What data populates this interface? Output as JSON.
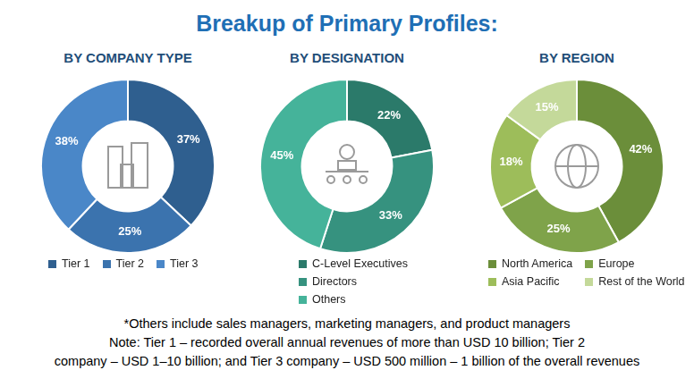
{
  "title": "Breakup of Primary Profiles:",
  "chart_data": [
    {
      "type": "doughnut",
      "title": "BY COMPANY TYPE",
      "categories": [
        "Tier 1",
        "Tier 2",
        "Tier 3"
      ],
      "values": [
        37,
        25,
        38
      ],
      "value_labels": [
        "37%",
        "25%",
        "38%"
      ],
      "colors": [
        "#2f5f8f",
        "#3b73ae",
        "#4a87c8"
      ],
      "data_labels": true,
      "legend": "bottom"
    },
    {
      "type": "doughnut",
      "title": "BY DESIGNATION",
      "categories": [
        "C-Level Executives",
        "Directors",
        "Others"
      ],
      "values": [
        22,
        33,
        45
      ],
      "value_labels": [
        "22%",
        "33%",
        "45%"
      ],
      "colors": [
        "#2b7a6a",
        "#36927f",
        "#45b39a"
      ],
      "data_labels": true,
      "legend": "bottom"
    },
    {
      "type": "doughnut",
      "title": "BY REGION",
      "categories": [
        "North America",
        "Europe",
        "Asia Pacific",
        "Rest of the World"
      ],
      "values": [
        42,
        25,
        18,
        15
      ],
      "value_labels": [
        "42%",
        "25%",
        "18%",
        "15%"
      ],
      "colors": [
        "#6b8e3a",
        "#7fa34a",
        "#9dbd5a",
        "#c4d99a"
      ],
      "data_labels": true,
      "legend": "bottom"
    }
  ],
  "notes": [
    "*Others include sales managers, marketing managers, and product managers",
    "Note: Tier 1 – recorded overall annual revenues of more than USD 10 billion; Tier 2",
    "company – USD 1–10 billion; and Tier 3 company – USD 500 million – 1 billion of the overall revenues"
  ]
}
